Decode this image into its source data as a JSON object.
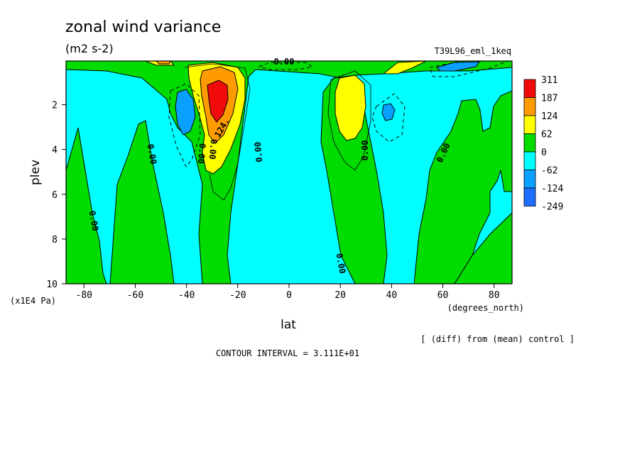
{
  "chart_data": {
    "type": "heatmap",
    "title": "zonal wind variance",
    "subtitle": "(m2 s-2)",
    "run_label": "T39L96_eml_1keq",
    "xlabel": "lat",
    "ylabel": "plev",
    "x_units": "(degrees_north)",
    "y_units": "(x1E4 Pa)",
    "xlim": [
      -87,
      87
    ],
    "ylim": [
      10,
      0.05
    ],
    "y_reversed": true,
    "x_ticks": [
      -80,
      -60,
      -40,
      -20,
      0,
      20,
      40,
      60,
      80
    ],
    "y_ticks": [
      2,
      4,
      6,
      8,
      10
    ],
    "note": "[ (diff) from (mean) control ]",
    "contour_interval": "CONTOUR INTERVAL = 3.111E+01",
    "colorbar": {
      "levels": [
        "311",
        "187",
        "124",
        "62",
        "0",
        "-62",
        "-124",
        "-249"
      ],
      "colors": [
        "#f00a0a",
        "#ff9a00",
        "#ffff00",
        "#00dc00",
        "#00ffff",
        "#0aa0ff",
        "#1e6eff"
      ]
    },
    "features": [
      {
        "lat": -30,
        "plev": 2.0,
        "value": 311
      },
      {
        "lat": -42,
        "plev": 2.4,
        "value": -124
      },
      {
        "lat": 25,
        "plev": 2.0,
        "value": 124
      },
      {
        "lat": 40,
        "plev": 2.5,
        "value": -62
      },
      {
        "lat": 70,
        "plev": 0.2,
        "value": -124
      }
    ],
    "contour_labels": [
      "0.00",
      "0.00",
      "0.00",
      "0.00",
      "0.00",
      "0.00",
      "0.00",
      "0.00",
      "124.",
      "0.00"
    ]
  }
}
